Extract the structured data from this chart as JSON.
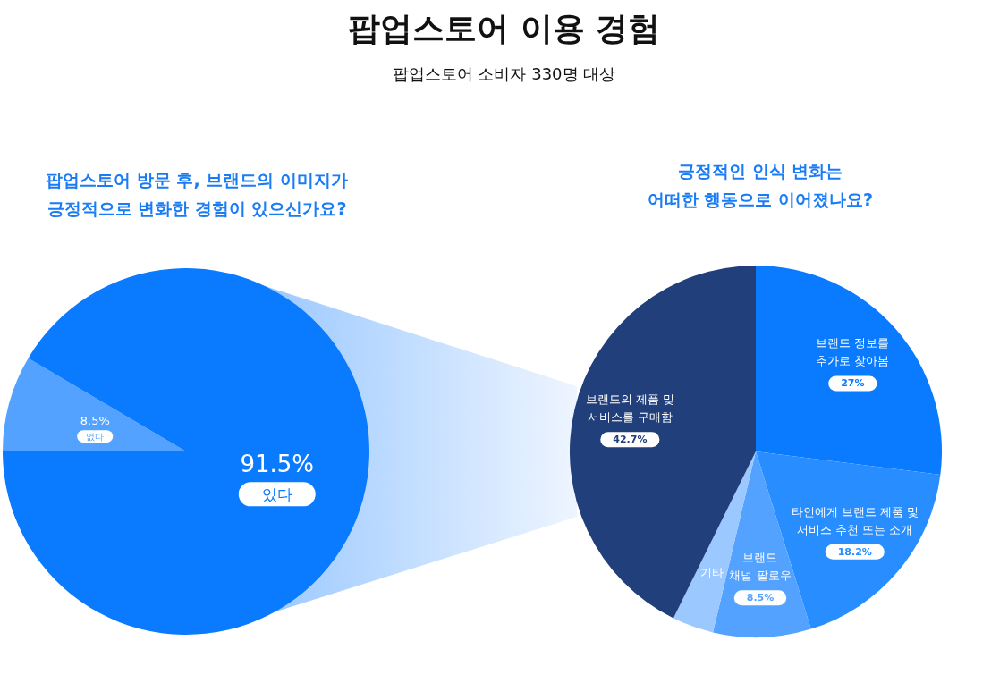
{
  "chart_data": [
    {
      "type": "other",
      "title": "팝업스토어 이용 경험",
      "subtitle": "팝업스토어 소비자 330명 대상"
    },
    {
      "type": "pie",
      "title": "팝업스토어 방문 후, 브랜드의 이미지가\n긍정적으로 변화한 경험이 있으신가요?",
      "categories": [
        "없다",
        "있다"
      ],
      "values": [
        8.5,
        91.5
      ],
      "colors": [
        "#54a2ff",
        "#0a7aff"
      ],
      "value_labels": [
        "8.5%",
        "91.5%"
      ]
    },
    {
      "type": "pie",
      "title": "긍정적인 인식 변화는\n어떠한 행동으로 이어졌나요?",
      "categories": [
        "브랜드 정보를\n추가로 찾아봄",
        "타인에게 브랜드 제품 및\n서비스 추천 또는 소개",
        "브랜드\n채널 팔로우",
        "기타",
        "브랜드의 제품 및\n서비스를 구매함"
      ],
      "values": [
        27,
        18.2,
        8.5,
        3.6,
        42.7
      ],
      "colors": [
        "#0a7aff",
        "#288dff",
        "#54a2ff",
        "#9ac8ff",
        "#213f7a"
      ],
      "value_labels": [
        "27%",
        "18.2%",
        "8.5%",
        null,
        "42.7%"
      ]
    }
  ]
}
